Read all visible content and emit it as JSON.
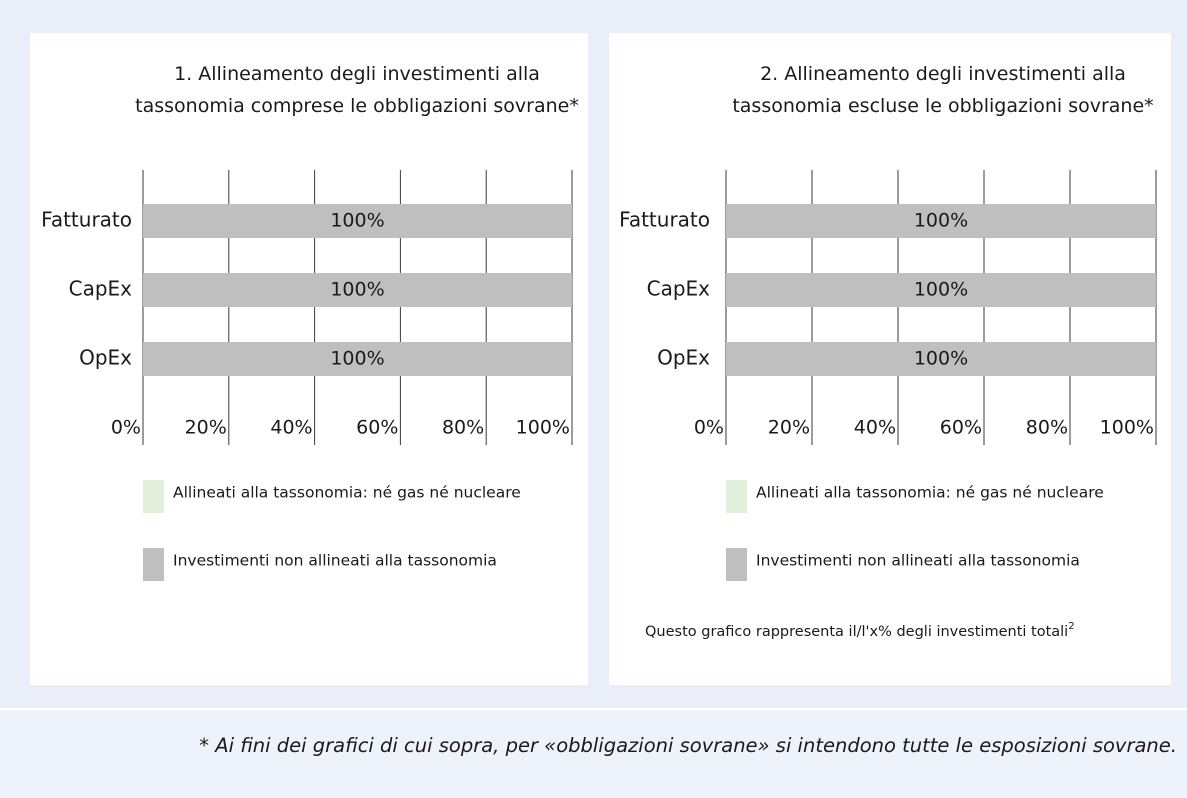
{
  "chart_data": [
    {
      "type": "hbar-stacked",
      "title": "1. Allineamento degli investimenti alla tassonomia comprese le obbligazioni sovrane*",
      "categories": [
        "Fatturato",
        "CapEx",
        "OpEx"
      ],
      "series": [
        {
          "name": "Allineati alla tassonomia: né gas né nucleare",
          "color": "#e2efda",
          "values": [
            0,
            0,
            0
          ]
        },
        {
          "name": "Investimenti non allineati alla tassonomia",
          "color": "#bfbfbf",
          "values": [
            100,
            100,
            100
          ],
          "value_labels": [
            "100%",
            "100%",
            "100%"
          ]
        }
      ],
      "xlim": [
        0,
        100
      ],
      "xticks": [
        {
          "value": 0,
          "label": "0%"
        },
        {
          "value": 20,
          "label": "20%"
        },
        {
          "value": 40,
          "label": "40%"
        },
        {
          "value": 60,
          "label": "60%"
        },
        {
          "value": 80,
          "label": "80%"
        },
        {
          "value": 100,
          "label": "100%"
        }
      ],
      "grid": true
    },
    {
      "type": "hbar-stacked",
      "title": "2. Allineamento degli investimenti alla tassonomia escluse le obbligazioni sovrane*",
      "categories": [
        "Fatturato",
        "CapEx",
        "OpEx"
      ],
      "series": [
        {
          "name": "Allineati alla tassonomia: né gas né nucleare",
          "color": "#e2efda",
          "values": [
            0,
            0,
            0
          ]
        },
        {
          "name": "Investimenti non allineati alla tassonomia",
          "color": "#bfbfbf",
          "values": [
            100,
            100,
            100
          ],
          "value_labels": [
            "100%",
            "100%",
            "100%"
          ]
        }
      ],
      "xlim": [
        0,
        100
      ],
      "xticks": [
        {
          "value": 0,
          "label": "0%"
        },
        {
          "value": 20,
          "label": "20%"
        },
        {
          "value": 40,
          "label": "40%"
        },
        {
          "value": 60,
          "label": "60%"
        },
        {
          "value": 80,
          "label": "80%"
        },
        {
          "value": 100,
          "label": "100%"
        }
      ],
      "grid": true,
      "note": "Questo grafico rappresenta il/l'x% degli investimenti totali",
      "note_superscript": "2"
    }
  ],
  "footnote": "* Ai fini dei grafici di cui sopra, per «obbligazioni sovrane» si intendono tutte le esposizioni sovrane."
}
